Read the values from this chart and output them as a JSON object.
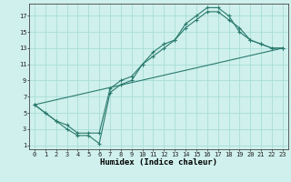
{
  "xlabel": "Humidex (Indice chaleur)",
  "bg_color": "#cff0ec",
  "grid_color": "#a8ddd8",
  "line_color": "#2a7a6e",
  "xlim": [
    -0.5,
    23.5
  ],
  "ylim": [
    0.5,
    18.5
  ],
  "xticks": [
    0,
    1,
    2,
    3,
    4,
    5,
    6,
    7,
    8,
    9,
    10,
    11,
    12,
    13,
    14,
    15,
    16,
    17,
    18,
    19,
    20,
    21,
    22,
    23
  ],
  "yticks": [
    1,
    3,
    5,
    7,
    9,
    11,
    13,
    15,
    17
  ],
  "line1_x": [
    0,
    1,
    2,
    3,
    4,
    5,
    6,
    7,
    8,
    9,
    10,
    11,
    12,
    13,
    14,
    15,
    16,
    17,
    18,
    19,
    20,
    21,
    22,
    23
  ],
  "line1_y": [
    6,
    5,
    4,
    3,
    2.2,
    2.2,
    1.2,
    7.5,
    8.5,
    9,
    11,
    12,
    13,
    14,
    16,
    17,
    18,
    18,
    17,
    15,
    14,
    13.5,
    13,
    13
  ],
  "line2_x": [
    0,
    1,
    2,
    3,
    4,
    5,
    6,
    7,
    8,
    9,
    10,
    11,
    12,
    13,
    14,
    15,
    16,
    17,
    18,
    19,
    20,
    21,
    22,
    23
  ],
  "line2_y": [
    6,
    5,
    4,
    3.5,
    2.5,
    2.5,
    2.5,
    8,
    9,
    9.5,
    11,
    12.5,
    13.5,
    14,
    15.5,
    16.5,
    17.5,
    17.5,
    16.5,
    15.5,
    14,
    13.5,
    13,
    13
  ],
  "line3_x": [
    0,
    23
  ],
  "line3_y": [
    6,
    13
  ],
  "tick_fontsize": 5,
  "xlabel_fontsize": 6.5
}
